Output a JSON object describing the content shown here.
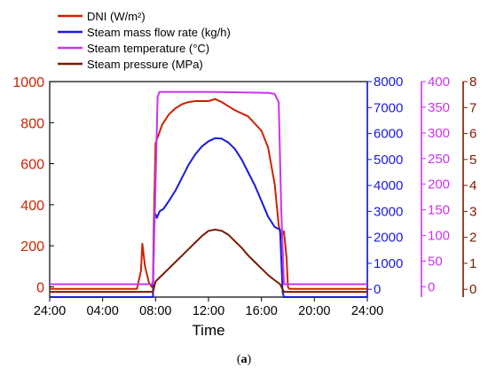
{
  "chart_data": {
    "type": "line",
    "xlabel": "Time",
    "x_ticks": [
      "24:00",
      "04:00",
      "08:00",
      "12:00",
      "16:00",
      "20:00",
      "24:00"
    ],
    "x_hours": [
      0,
      4,
      8,
      12,
      16,
      20,
      24
    ],
    "legend_placement": "top-left",
    "axes": [
      {
        "id": "dni",
        "side": "left",
        "color": "#cc2200",
        "ylim": [
          -50,
          1000
        ],
        "ticks": [
          0,
          200,
          400,
          600,
          800,
          1000
        ]
      },
      {
        "id": "flow",
        "side": "right",
        "color": "#1a1adc",
        "ylim": [
          -300,
          8000
        ],
        "ticks": [
          0,
          1000,
          2000,
          3000,
          4000,
          5000,
          6000,
          7000,
          8000
        ]
      },
      {
        "id": "temp",
        "side": "right",
        "color": "#cc33ee",
        "ylim": [
          -20,
          400
        ],
        "ticks": [
          0,
          50,
          100,
          150,
          200,
          250,
          300,
          350,
          400
        ]
      },
      {
        "id": "pressure",
        "side": "right",
        "color": "#7a1a00",
        "ylim": [
          -0.3,
          8
        ],
        "ticks": [
          0,
          1,
          2,
          3,
          4,
          5,
          6,
          7,
          8
        ]
      }
    ],
    "series": [
      {
        "name": "DNI (W/m²)",
        "color": "#cc2200",
        "axis": "dni",
        "x": [
          0,
          6.6,
          6.9,
          7.0,
          7.2,
          7.5,
          7.7,
          7.8,
          7.9,
          8.0,
          8.5,
          9.0,
          9.5,
          10.0,
          10.5,
          11.0,
          12.0,
          12.5,
          13.0,
          13.5,
          14.0,
          15.0,
          16.0,
          16.5,
          17.0,
          17.3,
          17.5,
          17.7,
          17.9,
          18.0,
          18.1,
          24
        ],
        "y": [
          -10,
          -10,
          80,
          210,
          100,
          20,
          0,
          30,
          400,
          700,
          790,
          840,
          870,
          890,
          900,
          905,
          905,
          915,
          900,
          880,
          860,
          830,
          760,
          680,
          500,
          300,
          240,
          270,
          140,
          0,
          -10,
          -10
        ]
      },
      {
        "name": "Steam mass flow rate (kg/h)",
        "color": "#1a1adc",
        "axis": "flow",
        "x": [
          0,
          7.8,
          7.9,
          8.0,
          8.1,
          8.3,
          8.6,
          9.0,
          9.5,
          10.0,
          10.5,
          11.0,
          11.5,
          12.0,
          12.5,
          13.0,
          13.5,
          14.0,
          14.5,
          15.0,
          15.5,
          16.0,
          16.5,
          17.0,
          17.4,
          17.5,
          17.6,
          17.7,
          24
        ],
        "y": [
          -300,
          -300,
          2700,
          2900,
          2750,
          3000,
          3100,
          3400,
          3800,
          4300,
          4800,
          5200,
          5500,
          5700,
          5820,
          5800,
          5650,
          5400,
          5000,
          4500,
          4000,
          3400,
          2800,
          2400,
          2300,
          1200,
          -100,
          -300,
          -300
        ]
      },
      {
        "name": "Steam temperature (°C)",
        "color": "#cc33ee",
        "axis": "temp",
        "x": [
          0,
          7.8,
          8.0,
          8.15,
          8.3,
          12.0,
          16.5,
          17.0,
          17.3,
          17.5,
          17.7,
          24
        ],
        "y": [
          5,
          5,
          200,
          370,
          380,
          380,
          378,
          376,
          360,
          150,
          5,
          5
        ]
      },
      {
        "name": "Steam pressure (MPa)",
        "color": "#7a1a00",
        "axis": "pressure",
        "x": [
          0,
          7.8,
          8.0,
          8.5,
          9.0,
          9.5,
          10.0,
          10.5,
          11.0,
          11.5,
          12.0,
          12.5,
          13.0,
          13.5,
          14.0,
          14.5,
          15.0,
          15.5,
          16.0,
          16.5,
          17.0,
          17.4,
          17.7,
          24
        ],
        "y": [
          -0.1,
          -0.1,
          0.3,
          0.55,
          0.8,
          1.05,
          1.3,
          1.55,
          1.8,
          2.05,
          2.25,
          2.3,
          2.25,
          2.1,
          1.85,
          1.6,
          1.3,
          1.05,
          0.8,
          0.55,
          0.35,
          0.2,
          -0.1,
          -0.1
        ]
      }
    ]
  },
  "caption": {
    "open": "(",
    "label": "a",
    "close": ")"
  }
}
